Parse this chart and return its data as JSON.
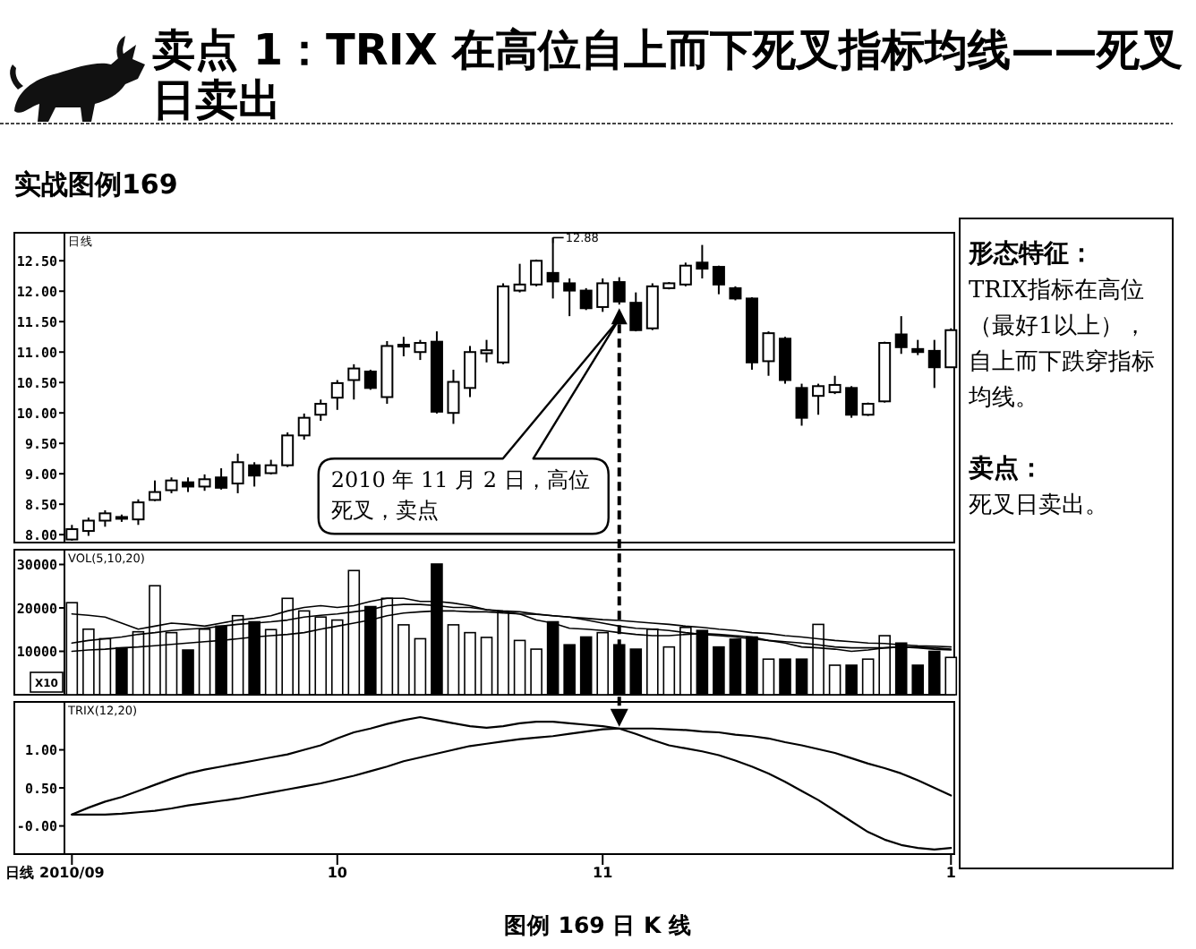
{
  "chart_data": [
    {
      "type": "candlestick",
      "title": "卖点 1：TRIX 在高位自上而下死叉指标均线——死叉日卖出",
      "subtitle": "实战图例169",
      "categories": [
        null,
        null,
        null,
        null,
        null,
        null,
        null,
        null,
        null,
        null,
        null,
        null,
        null,
        null,
        null,
        null,
        null,
        null,
        null,
        null,
        null,
        null,
        null,
        null,
        null,
        null,
        null,
        null,
        null,
        null,
        null,
        null,
        null,
        null,
        null,
        null,
        null,
        null,
        null,
        null,
        null,
        null,
        null,
        null,
        null,
        null,
        null,
        null,
        null,
        null,
        null,
        null,
        null,
        null
      ],
      "ohlc": [
        [
          7.92,
          8.16,
          7.9,
          8.09
        ],
        [
          8.06,
          8.28,
          7.98,
          8.23
        ],
        [
          8.23,
          8.4,
          8.13,
          8.35
        ],
        [
          8.29,
          8.33,
          8.21,
          8.27
        ],
        [
          8.25,
          8.58,
          8.16,
          8.53
        ],
        [
          8.57,
          8.89,
          8.55,
          8.7
        ],
        [
          8.73,
          8.94,
          8.68,
          8.89
        ],
        [
          8.86,
          8.94,
          8.7,
          8.79
        ],
        [
          8.79,
          8.99,
          8.72,
          8.91
        ],
        [
          8.94,
          9.09,
          8.74,
          8.77
        ],
        [
          8.84,
          9.33,
          8.68,
          9.19
        ],
        [
          9.14,
          9.19,
          8.79,
          8.97
        ],
        [
          9.01,
          9.23,
          8.99,
          9.14
        ],
        [
          9.14,
          9.68,
          9.11,
          9.63
        ],
        [
          9.63,
          9.99,
          9.56,
          9.92
        ],
        [
          9.97,
          10.22,
          9.87,
          10.15
        ],
        [
          10.25,
          10.54,
          10.05,
          10.49
        ],
        [
          10.54,
          10.8,
          10.22,
          10.73
        ],
        [
          10.68,
          10.71,
          10.38,
          10.41
        ],
        [
          10.26,
          11.18,
          10.15,
          11.1
        ],
        [
          11.09,
          11.25,
          10.93,
          11.12
        ],
        [
          11.0,
          11.2,
          10.87,
          11.15
        ],
        [
          11.17,
          11.34,
          9.99,
          10.02
        ],
        [
          10.0,
          10.71,
          9.82,
          10.51
        ],
        [
          10.41,
          11.1,
          10.26,
          11.0
        ],
        [
          10.98,
          11.2,
          10.83,
          11.03
        ],
        [
          10.83,
          12.13,
          10.8,
          12.08
        ],
        [
          12.01,
          12.45,
          11.98,
          12.11
        ],
        [
          12.11,
          12.52,
          12.08,
          12.5
        ],
        [
          12.3,
          12.88,
          11.88,
          12.16
        ],
        [
          12.13,
          12.21,
          11.59,
          12.01
        ],
        [
          12.01,
          12.05,
          11.69,
          11.72
        ],
        [
          11.74,
          12.21,
          11.66,
          12.13
        ],
        [
          12.15,
          12.23,
          11.78,
          11.83
        ],
        [
          11.81,
          11.98,
          11.34,
          11.36
        ],
        [
          11.39,
          12.13,
          11.36,
          12.08
        ],
        [
          12.05,
          12.15,
          12.03,
          12.13
        ],
        [
          12.11,
          12.47,
          12.08,
          12.42
        ],
        [
          12.47,
          12.76,
          12.21,
          12.37
        ],
        [
          12.4,
          12.42,
          11.95,
          12.11
        ],
        [
          12.05,
          12.08,
          11.85,
          11.88
        ],
        [
          11.88,
          11.9,
          10.71,
          10.83
        ],
        [
          10.85,
          11.34,
          10.61,
          11.31
        ],
        [
          11.22,
          11.25,
          10.48,
          10.54
        ],
        [
          10.41,
          10.48,
          9.79,
          9.92
        ],
        [
          10.28,
          10.48,
          9.97,
          10.44
        ],
        [
          10.34,
          10.61,
          10.31,
          10.46
        ],
        [
          10.41,
          10.44,
          9.92,
          9.97
        ],
        [
          9.97,
          10.17,
          9.95,
          10.15
        ],
        [
          10.19,
          11.17,
          10.17,
          11.15
        ],
        [
          11.29,
          11.59,
          10.97,
          11.08
        ],
        [
          11.05,
          11.2,
          10.95,
          11.0
        ],
        [
          11.02,
          11.2,
          10.41,
          10.75
        ],
        [
          10.75,
          11.39,
          10.74,
          11.36
        ]
      ],
      "color": "#000000",
      "ylim": [
        7.87,
        12.96
      ],
      "yticks": [
        {
          "value": 8,
          "label": "8.00"
        },
        {
          "value": 8.5,
          "label": "8.50"
        },
        {
          "value": 9,
          "label": "9.00"
        },
        {
          "value": 9.5,
          "label": "9.50"
        },
        {
          "value": 10,
          "label": "10.00"
        },
        {
          "value": 10.5,
          "label": "10.50"
        },
        {
          "value": 11,
          "label": "11.00"
        },
        {
          "value": 11.5,
          "label": "11.50"
        },
        {
          "value": 12,
          "label": "12.00"
        },
        {
          "value": 12.5,
          "label": "12.50"
        }
      ],
      "tick_labels": "y",
      "annotations": [
        "12.88",
        "2010 年 11 月 2 日，高位死叉，卖点",
        "日线",
        "图例 169 日 K 线"
      ]
    },
    {
      "type": "bar",
      "categories": [
        null,
        null,
        null,
        null,
        null,
        null,
        null,
        null,
        null,
        null,
        null,
        null,
        null,
        null,
        null,
        null,
        null,
        null,
        null,
        null,
        null,
        null,
        null,
        null,
        null,
        null,
        null,
        null,
        null,
        null,
        null,
        null,
        null,
        null,
        null,
        null,
        null,
        null,
        null,
        null,
        null,
        null,
        null,
        null,
        null,
        null,
        null,
        null,
        null,
        null,
        null,
        null,
        null,
        null
      ],
      "series": [
        {
          "type": "bar",
          "color": "#000000",
          "colors": [
            "#ffffff",
            "#ffffff",
            "#ffffff",
            "#000000",
            "#ffffff",
            "#ffffff",
            "#ffffff",
            "#000000",
            "#ffffff",
            "#000000",
            "#ffffff",
            "#000000",
            "#ffffff",
            "#ffffff",
            "#ffffff",
            "#ffffff",
            "#ffffff",
            "#ffffff",
            "#000000",
            "#ffffff",
            "#ffffff",
            "#ffffff",
            "#000000",
            "#ffffff",
            "#ffffff",
            "#ffffff",
            "#ffffff",
            "#ffffff",
            "#ffffff",
            "#000000",
            "#000000",
            "#000000",
            "#ffffff",
            "#000000",
            "#000000",
            "#ffffff",
            "#ffffff",
            "#ffffff",
            "#000000",
            "#000000",
            "#000000",
            "#000000",
            "#ffffff",
            "#000000",
            "#000000",
            "#ffffff",
            "#ffffff",
            "#000000",
            "#ffffff",
            "#ffffff",
            "#000000",
            "#000000",
            "#000000",
            "#ffffff"
          ],
          "values": [
            21200,
            15100,
            12900,
            10800,
            14500,
            25100,
            14300,
            10300,
            15100,
            15800,
            18200,
            16800,
            15000,
            22200,
            19300,
            17900,
            17200,
            28600,
            20300,
            22200,
            16100,
            12900,
            30100,
            16100,
            14300,
            13200,
            19100,
            12500,
            10500,
            16800,
            11500,
            13300,
            14300,
            11500,
            10500,
            15100,
            11000,
            15500,
            14800,
            11000,
            12800,
            13300,
            8200,
            8200,
            8200,
            16200,
            6800,
            6800,
            8200,
            13600,
            11900,
            6800,
            10000,
            8600
          ]
        },
        {
          "type": "line",
          "color": "#000000",
          "values": [
            18600,
            18300,
            17900,
            16500,
            15100,
            15800,
            16500,
            16200,
            15800,
            16500,
            17200,
            17600,
            18200,
            19300,
            20100,
            20500,
            20100,
            20500,
            21500,
            22200,
            22200,
            21500,
            21500,
            21100,
            20500,
            19600,
            19100,
            18600,
            17200,
            16500,
            15300,
            15100,
            14800,
            14300,
            13900,
            13600,
            13600,
            13900,
            14100,
            13900,
            13600,
            13300,
            12500,
            11900,
            11000,
            10800,
            10500,
            10000,
            10300,
            10800,
            11000,
            10800,
            10500,
            10300
          ]
        },
        {
          "type": "line",
          "color": "#000000",
          "values": [
            11900,
            12500,
            12900,
            13300,
            13900,
            14300,
            14800,
            15100,
            15300,
            15800,
            16200,
            16500,
            16800,
            17200,
            17900,
            18300,
            18600,
            19100,
            19600,
            20500,
            20800,
            20800,
            20500,
            20100,
            20100,
            19600,
            19300,
            19100,
            18600,
            18200,
            17900,
            17200,
            16500,
            15800,
            15300,
            15100,
            14800,
            14300,
            13900,
            13600,
            13300,
            12900,
            12500,
            12200,
            11900,
            11500,
            11000,
            10800,
            10800,
            10800,
            11000,
            11000,
            10800,
            10500
          ]
        },
        {
          "type": "line",
          "color": "#000000",
          "values": [
            10000,
            10300,
            10500,
            10800,
            11000,
            11300,
            11600,
            11900,
            12200,
            12500,
            12900,
            13300,
            13600,
            13900,
            14300,
            15100,
            15800,
            16500,
            17200,
            18200,
            18800,
            19100,
            19300,
            19300,
            19100,
            19100,
            18800,
            18600,
            18500,
            18200,
            17900,
            17600,
            17300,
            17100,
            16800,
            16500,
            16200,
            15800,
            15500,
            15100,
            14800,
            14300,
            14100,
            13600,
            13300,
            12900,
            12500,
            12200,
            11900,
            11800,
            11500,
            11300,
            11200,
            11000
          ]
        }
      ],
      "ylim": [
        0,
        33400
      ],
      "yticks": [
        10000,
        20000,
        30000
      ],
      "tick_labels": "y",
      "annotations": [
        "VOL(5,10,20)",
        "X10"
      ]
    },
    {
      "type": "line",
      "categories": [
        "2010/09",
        null,
        null,
        null,
        null,
        null,
        null,
        null,
        null,
        null,
        null,
        null,
        null,
        null,
        null,
        null,
        "10",
        null,
        null,
        null,
        null,
        null,
        null,
        null,
        null,
        null,
        null,
        null,
        null,
        null,
        null,
        null,
        "11",
        null,
        null,
        null,
        null,
        null,
        null,
        null,
        null,
        null,
        null,
        null,
        null,
        null,
        null,
        null,
        null,
        null,
        null,
        null,
        null,
        "1"
      ],
      "series": [
        {
          "color": "#000000",
          "values": [
            0.15,
            0.24,
            0.32,
            0.38,
            0.46,
            0.54,
            0.62,
            0.69,
            0.74,
            0.78,
            0.82,
            0.86,
            0.9,
            0.94,
            1.0,
            1.06,
            1.15,
            1.23,
            1.28,
            1.34,
            1.39,
            1.43,
            1.39,
            1.35,
            1.31,
            1.29,
            1.31,
            1.35,
            1.37,
            1.37,
            1.35,
            1.33,
            1.31,
            1.28,
            1.21,
            1.13,
            1.06,
            1.02,
            0.98,
            0.93,
            0.86,
            0.78,
            0.69,
            0.58,
            0.46,
            0.34,
            0.2,
            0.06,
            -0.08,
            -0.18,
            -0.25,
            -0.29,
            -0.31,
            -0.29
          ]
        },
        {
          "color": "#000000",
          "values": [
            0.15,
            0.15,
            0.15,
            0.16,
            0.18,
            0.2,
            0.23,
            0.27,
            0.3,
            0.33,
            0.36,
            0.4,
            0.44,
            0.48,
            0.52,
            0.56,
            0.61,
            0.66,
            0.72,
            0.78,
            0.85,
            0.9,
            0.95,
            1.0,
            1.05,
            1.08,
            1.11,
            1.14,
            1.16,
            1.18,
            1.21,
            1.24,
            1.27,
            1.28,
            1.28,
            1.28,
            1.27,
            1.26,
            1.24,
            1.23,
            1.2,
            1.18,
            1.15,
            1.1,
            1.06,
            1.01,
            0.96,
            0.89,
            0.82,
            0.76,
            0.69,
            0.6,
            0.5,
            0.4
          ]
        }
      ],
      "ylim": [
        -0.37,
        1.63
      ],
      "yticks": [
        {
          "value": 0,
          "label": "-0.00"
        },
        {
          "value": 0.5,
          "label": "0.50"
        },
        {
          "value": 1,
          "label": "1.00"
        }
      ],
      "annotations": [
        "TRIX(12,20)",
        "日线"
      ]
    },
    {
      "type": "other",
      "title": "形态特征：",
      "annotations": [
        "TRIX指标在高位（最好1以上），自上而下跌穿指标均线。"
      ]
    },
    {
      "type": "other",
      "title": "卖点：",
      "annotations": [
        "死叉日卖出。"
      ]
    }
  ]
}
